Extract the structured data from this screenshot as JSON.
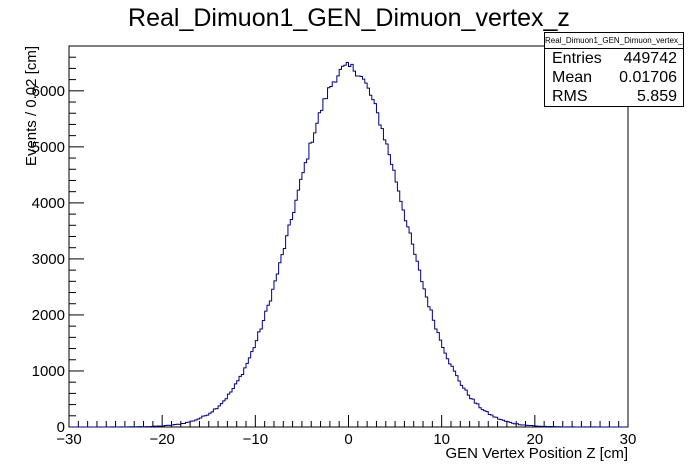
{
  "chart_data": {
    "type": "histogram",
    "title": "Real_Dimuon1_GEN_Dimuon_vertex_z",
    "xlabel": "GEN Vertex Position Z [cm]",
    "ylabel": "Events / 0.02 [cm]",
    "xlim": [
      -30,
      30
    ],
    "ylim": [
      0,
      6800
    ],
    "x_ticks": [
      -30,
      -20,
      -10,
      0,
      10,
      20,
      30
    ],
    "y_ticks": [
      0,
      1000,
      2000,
      3000,
      4000,
      5000,
      6000
    ],
    "x_tick_labels": [
      "−30",
      "−20",
      "−10",
      "0",
      "10",
      "20",
      "30"
    ],
    "y_tick_labels": [
      "0",
      "1000",
      "2000",
      "3000",
      "4000",
      "5000",
      "6000"
    ],
    "distribution": {
      "shape": "gaussian",
      "peak": 6420,
      "mean": 0.02,
      "sigma": 5.86
    },
    "line_color": "#00007f",
    "grid": false,
    "legend_position": "top-right"
  },
  "stats": {
    "title": "Real_Dimuon1_GEN_Dimuon_vertex_z",
    "rows": [
      {
        "label": "Entries",
        "value": "449742"
      },
      {
        "label": "Mean",
        "value": "0.01706"
      },
      {
        "label": "RMS",
        "value": "5.859"
      }
    ]
  }
}
